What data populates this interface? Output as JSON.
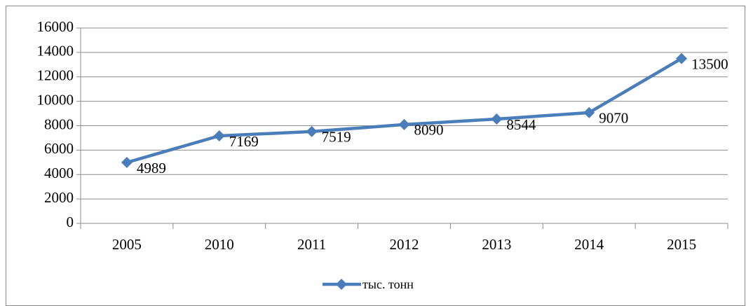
{
  "chart_data": {
    "type": "line",
    "categories": [
      "2005",
      "2010",
      "2011",
      "2012",
      "2013",
      "2014",
      "2015"
    ],
    "series": [
      {
        "name": "тыс. тонн",
        "color": "#4a7ebb",
        "values": [
          4989,
          7169,
          7519,
          8090,
          8544,
          9070,
          13500
        ]
      }
    ],
    "ylim": [
      0,
      16000
    ],
    "yticks": [
      0,
      2000,
      4000,
      6000,
      8000,
      10000,
      12000,
      14000,
      16000
    ],
    "grid": true,
    "legend": "bottom",
    "data_labels": true
  }
}
